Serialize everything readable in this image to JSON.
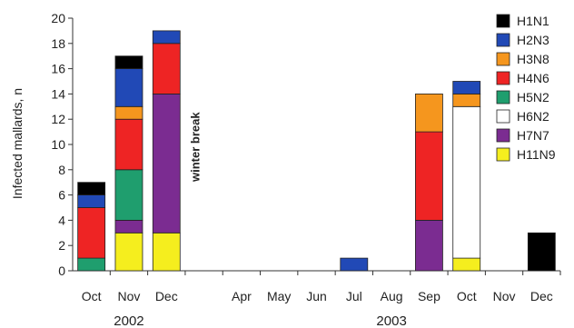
{
  "chart_data": {
    "type": "bar",
    "stacked": true,
    "title": "",
    "xlabel": "",
    "ylabel": "Infected mallards, n",
    "ylim": [
      0,
      20
    ],
    "yticks": [
      0,
      2,
      4,
      6,
      8,
      10,
      12,
      14,
      16,
      18,
      20
    ],
    "grid": false,
    "legend_position": "right",
    "categories": [
      "Oct",
      "Nov",
      "Dec",
      "",
      "Apr",
      "May",
      "Jun",
      "Jul",
      "Aug",
      "Sep",
      "Oct",
      "Nov",
      "Dec"
    ],
    "year_groups": [
      {
        "label": "2002",
        "from": 0,
        "to": 2
      },
      {
        "label": "2003",
        "from": 4,
        "to": 12
      }
    ],
    "annotation": {
      "text": "winter break",
      "category_index": 3
    },
    "series": [
      {
        "name": "H11N9",
        "color": "#f5ee1e",
        "values": [
          0,
          3,
          3,
          0,
          0,
          0,
          0,
          0,
          0,
          0,
          1,
          0,
          0
        ]
      },
      {
        "name": "H7N7",
        "color": "#7b2c91",
        "values": [
          0,
          1,
          11,
          0,
          0,
          0,
          0,
          0,
          0,
          4,
          0,
          0,
          0
        ]
      },
      {
        "name": "H6N2",
        "color": "#ffffff",
        "values": [
          0,
          0,
          0,
          0,
          0,
          0,
          0,
          0,
          0,
          0,
          12,
          0,
          0
        ]
      },
      {
        "name": "H5N2",
        "color": "#1f9e6e",
        "values": [
          1,
          4,
          0,
          0,
          0,
          0,
          0,
          0,
          0,
          0,
          0,
          0,
          0
        ]
      },
      {
        "name": "H4N6",
        "color": "#ee2424",
        "values": [
          4,
          4,
          4,
          0,
          0,
          0,
          0,
          0,
          0,
          7,
          0,
          0,
          0
        ]
      },
      {
        "name": "H3N8",
        "color": "#f5961e",
        "values": [
          0,
          1,
          0,
          0,
          0,
          0,
          0,
          0,
          0,
          3,
          1,
          0,
          0
        ]
      },
      {
        "name": "H2N3",
        "color": "#2149b6",
        "values": [
          1,
          3,
          1,
          0,
          0,
          0,
          0,
          1,
          0,
          0,
          1,
          0,
          0
        ]
      },
      {
        "name": "H1N1",
        "color": "#000000",
        "values": [
          1,
          1,
          0,
          0,
          0,
          0,
          0,
          0,
          0,
          0,
          0,
          0,
          3
        ]
      }
    ],
    "legend_order": [
      "H1N1",
      "H2N3",
      "H3N8",
      "H4N6",
      "H5N2",
      "H6N2",
      "H7N7",
      "H11N9"
    ]
  }
}
